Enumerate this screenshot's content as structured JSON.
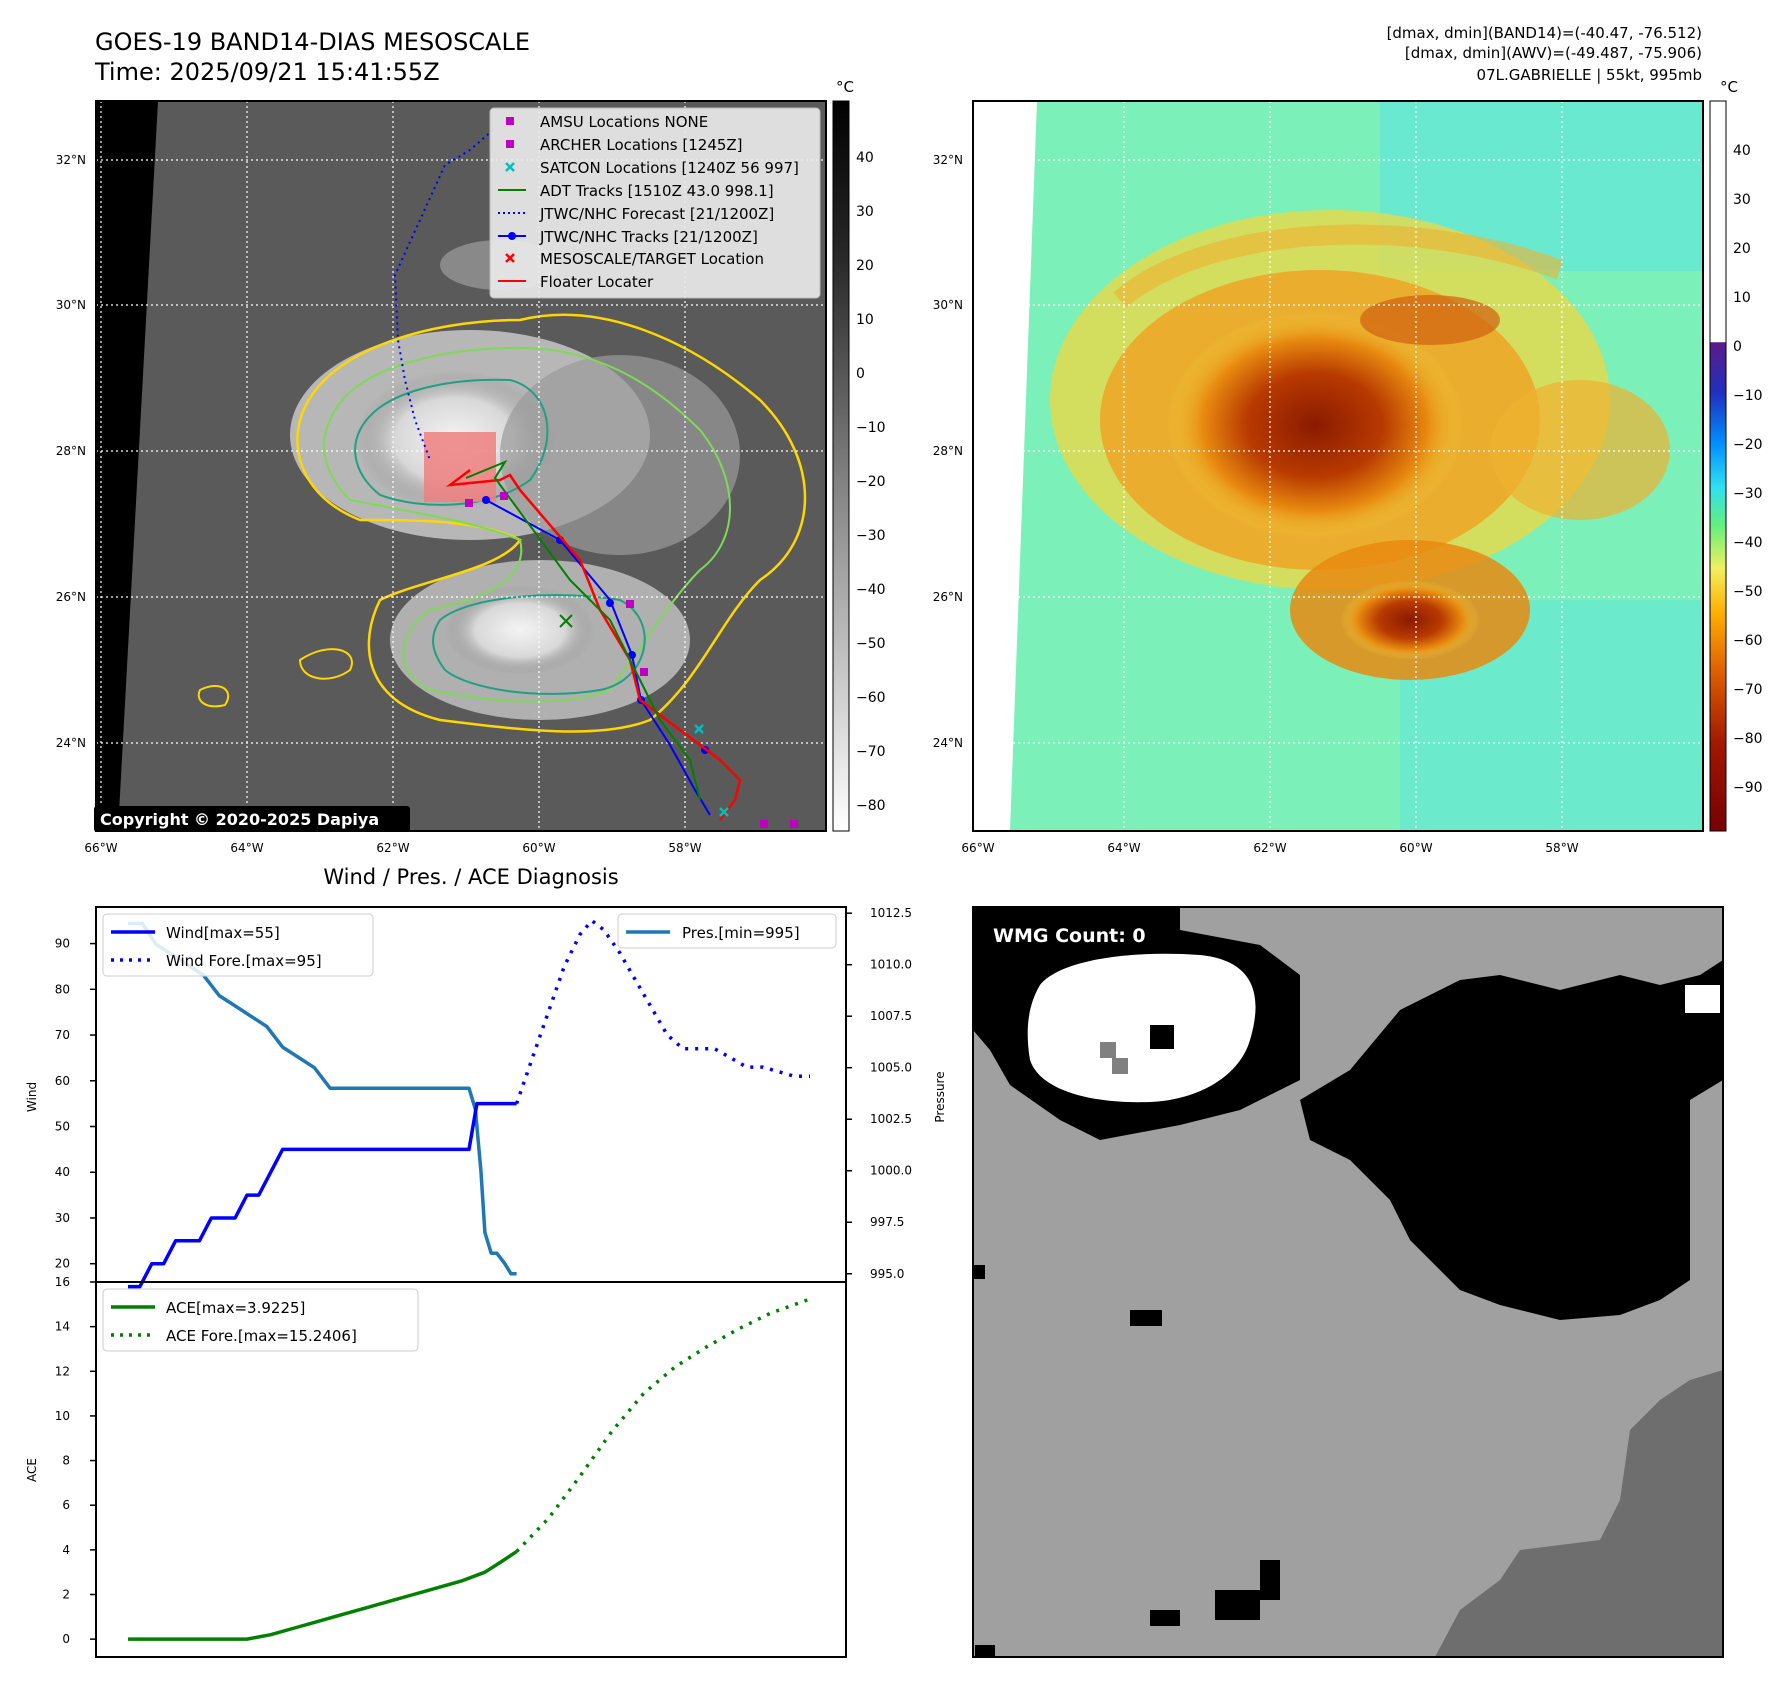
{
  "header": {
    "title_line1": "GOES-19 BAND14-DIAS MESOSCALE",
    "title_line2": "Time: 2025/09/21 15:41:55Z",
    "info_line1": "[dmax, dmin](BAND14)=(-40.47, -76.512)",
    "info_line2": "[dmax, dmin](AWV)=(-49.487, -75.906)",
    "info_line3": "07L.GABRIELLE | 55kt, 995mb"
  },
  "map_panel": {
    "copyright": "Copyright © 2020-2025 Dapiya",
    "lat_labels": [
      "32°N",
      "30°N",
      "28°N",
      "26°N",
      "24°N"
    ],
    "lon_labels": [
      "66°W",
      "64°W",
      "62°W",
      "60°W",
      "58°W"
    ],
    "legend": [
      "AMSU Locations NONE",
      "ARCHER Locations [1245Z]",
      "SATCON Locations [1240Z 56 997]",
      "ADT Tracks [1510Z 43.0 998.1]",
      "JTWC/NHC Forecast [21/1200Z]",
      "JTWC/NHC Tracks [21/1200Z]",
      "MESOSCALE/TARGET Location",
      "Floater Locater"
    ],
    "colorbar_unit": "°C",
    "colorbar_ticks": [
      "40",
      "30",
      "20",
      "10",
      "0",
      "−10",
      "−20",
      "−30",
      "−40",
      "−50",
      "−60",
      "−70",
      "−80"
    ],
    "colors": {
      "amsu": "#c000c0",
      "archer": "#c000c0",
      "satcon": "#00c0c0",
      "adt": "#008000",
      "forecast": "#0000ff",
      "track": "#0000ff",
      "target": "#ff0000",
      "floater": "#ff0000"
    }
  },
  "awv_panel": {
    "lat_labels": [
      "32°N",
      "30°N",
      "28°N",
      "26°N",
      "24°N"
    ],
    "lon_labels": [
      "66°W",
      "64°W",
      "62°W",
      "60°W",
      "58°W"
    ],
    "colorbar_unit": "°C",
    "colorbar_ticks": [
      "40",
      "30",
      "20",
      "10",
      "0",
      "−10",
      "−20",
      "−30",
      "−40",
      "−50",
      "−60",
      "−70",
      "−80",
      "−90"
    ]
  },
  "wmg_panel": {
    "label": "WMG Count: 0"
  },
  "chart_data": [
    {
      "type": "line",
      "title": "Wind / Pres. / ACE Diagnosis",
      "ylabel": "Wind",
      "ylim": [
        16,
        98
      ],
      "yticks": [
        20,
        30,
        40,
        50,
        60,
        70,
        80,
        90
      ],
      "x_index_range": [
        0,
        49
      ],
      "series": [
        {
          "name": "Wind[max=55]",
          "style": "solid",
          "color": "#0000ff",
          "x": [
            0,
            1.5,
            3,
            4.5,
            6,
            7.5,
            9,
            10.5,
            12,
            13.5,
            15,
            16.5,
            18,
            19.5,
            21,
            22.5,
            24,
            25.5,
            27,
            29,
            31,
            33,
            35,
            37,
            39,
            41,
            43,
            44,
            45,
            46,
            47,
            48,
            49
          ],
          "values": [
            15,
            15,
            20,
            20,
            25,
            25,
            25,
            30,
            30,
            30,
            35,
            35,
            40,
            45,
            45,
            45,
            45,
            45,
            45,
            45,
            45,
            45,
            45,
            45,
            45,
            45,
            45,
            55,
            55,
            55,
            55,
            55,
            55
          ]
        },
        {
          "name": "Wind Fore.[max=95]",
          "style": "dotted",
          "color": "#0000ff",
          "x": [
            49,
            51,
            53,
            55,
            57,
            58.5,
            60,
            62,
            64,
            66,
            68,
            70,
            72,
            74,
            76,
            78,
            80,
            82,
            84,
            86
          ],
          "values": [
            55,
            65,
            75,
            85,
            92,
            95,
            93,
            88,
            82,
            76,
            70,
            67,
            67,
            67,
            65,
            63,
            63,
            62,
            61,
            61
          ]
        }
      ]
    },
    {
      "type": "line",
      "ylabel": "Pressure",
      "ylim": [
        994.6,
        1012.8
      ],
      "yticks": [
        995.0,
        997.5,
        1000.0,
        1002.5,
        1005.0,
        1007.5,
        1010.0,
        1012.5
      ],
      "ytick_labels": [
        "995.0",
        "997.5",
        "1000.0",
        "1002.5",
        "1005.0",
        "1007.5",
        "1010.0",
        "1012.5"
      ],
      "series": [
        {
          "name": "Pres.[min=995]",
          "style": "solid",
          "color": "#1f77b4",
          "x": [
            0,
            1.8,
            3.5,
            5.5,
            7.5,
            9.5,
            11.5,
            13.5,
            15.5,
            17.5,
            19.5,
            21.5,
            23.5,
            25.5,
            27.5,
            29.5,
            31.5,
            33.5,
            35.5,
            37.5,
            39.5,
            41.5,
            43,
            43.8,
            44.5,
            45,
            45.8,
            46.5,
            47.5,
            48.3,
            49
          ],
          "values": [
            1012.0,
            1012.0,
            1011.0,
            1010.5,
            1010.0,
            1009.5,
            1008.5,
            1008.0,
            1007.5,
            1007.0,
            1006.0,
            1005.5,
            1005.0,
            1004.0,
            1004.0,
            1004.0,
            1004.0,
            1004.0,
            1004.0,
            1004.0,
            1004.0,
            1004.0,
            1004.0,
            1003.0,
            1000.0,
            997.0,
            996.0,
            996.0,
            995.5,
            995.0,
            995.0
          ]
        }
      ]
    },
    {
      "type": "line",
      "ylabel": "ACE",
      "ylim": [
        -0.8,
        16
      ],
      "yticks": [
        0,
        2,
        4,
        6,
        8,
        10,
        12,
        14,
        16
      ],
      "series": [
        {
          "name": "ACE[max=3.9225]",
          "style": "solid",
          "color": "#008000",
          "x": [
            0,
            3,
            6,
            9,
            12,
            15,
            18,
            21,
            24,
            27,
            30,
            33,
            36,
            39,
            42,
            45,
            47,
            49
          ],
          "values": [
            0,
            0,
            0,
            0,
            0,
            0,
            0.2,
            0.5,
            0.8,
            1.1,
            1.4,
            1.7,
            2.0,
            2.3,
            2.6,
            3.0,
            3.45,
            3.92
          ]
        },
        {
          "name": "ACE Fore.[max=15.2406]",
          "style": "dotted",
          "color": "#008000",
          "x": [
            49,
            53,
            57,
            61,
            65,
            69,
            73,
            77,
            81,
            86
          ],
          "values": [
            3.92,
            5.4,
            7.3,
            9.3,
            11.0,
            12.2,
            13.1,
            13.9,
            14.6,
            15.24
          ]
        }
      ]
    }
  ]
}
